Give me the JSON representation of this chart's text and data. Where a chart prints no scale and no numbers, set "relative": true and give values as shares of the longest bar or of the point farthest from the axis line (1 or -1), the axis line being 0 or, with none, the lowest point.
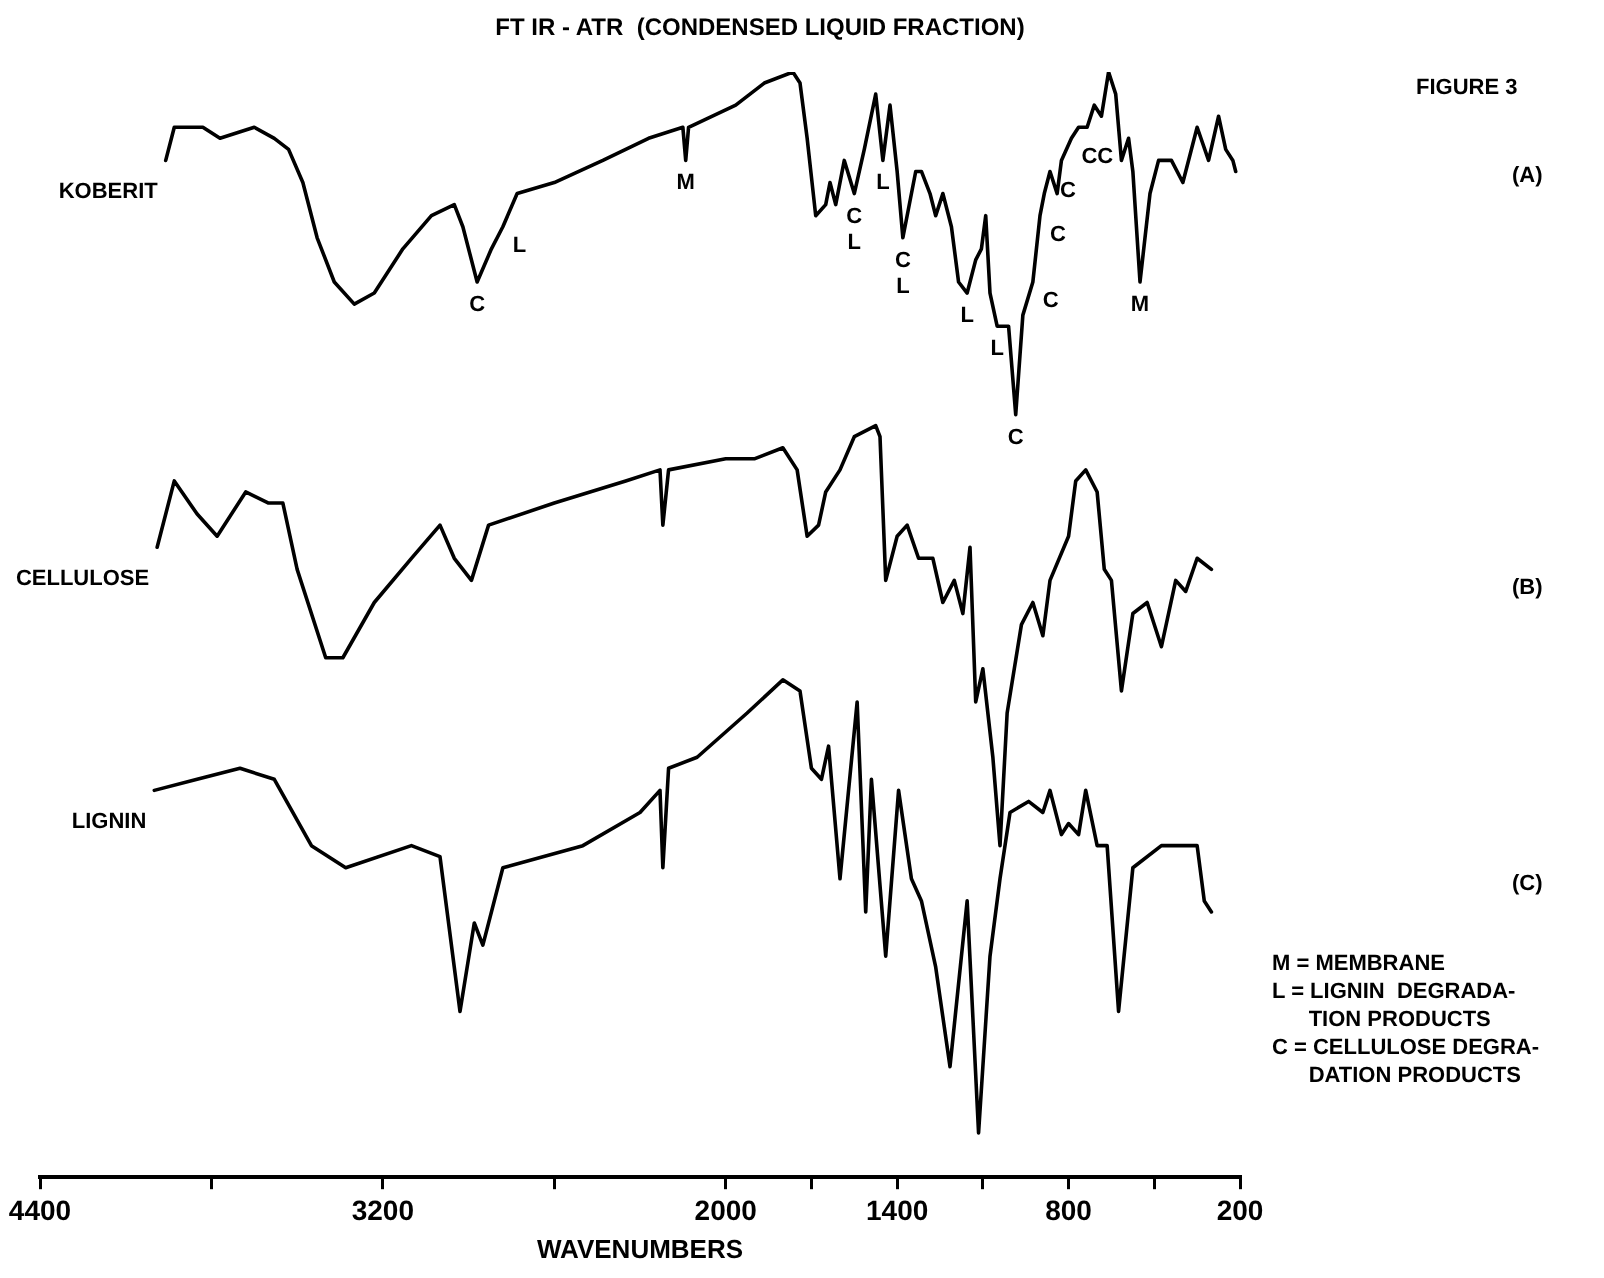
{
  "chart_data": {
    "type": "line",
    "title": "FT IR - ATR  (CONDENSED LIQUID FRACTION)",
    "xlabel": "WAVENUMBERS",
    "relative": true,
    "grid": false,
    "legend": false,
    "marker": "none",
    "line_style": "solid",
    "xlim": [
      4400,
      200
    ],
    "xticks": [
      4400,
      {
        "value": 3800,
        "label": null
      },
      3200,
      {
        "value": 2600,
        "label": null
      },
      2000,
      {
        "value": 1700,
        "label": null
      },
      1400,
      {
        "value": 1100,
        "label": null
      },
      800,
      {
        "value": 500,
        "label": null
      },
      200
    ],
    "series": [
      {
        "name": "KOBERIT",
        "color": "#000000",
        "x": [
          3960,
          3930,
          3880,
          3830,
          3770,
          3650,
          3580,
          3530,
          3480,
          3430,
          3370,
          3300,
          3230,
          3130,
          3030,
          2950,
          2920,
          2870,
          2820,
          2780,
          2730,
          2600,
          2430,
          2270,
          2150,
          2140,
          2130,
          1965,
          1865,
          1765,
          1740,
          1715,
          1685,
          1650,
          1635,
          1615,
          1585,
          1550,
          1515,
          1475,
          1450,
          1425,
          1400,
          1380,
          1335,
          1315,
          1285,
          1265,
          1240,
          1210,
          1185,
          1155,
          1125,
          1105,
          1090,
          1075,
          1050,
          1010,
          985,
          960,
          925,
          900,
          885,
          865,
          840,
          825,
          790,
          765,
          735,
          710,
          685,
          660,
          635,
          615,
          590,
          575,
          550,
          515,
          485,
          440,
          400,
          350,
          310,
          275,
          250,
          225,
          215
        ],
        "values": [
          0.92,
          0.95,
          0.95,
          0.95,
          0.94,
          0.95,
          0.94,
          0.93,
          0.9,
          0.85,
          0.81,
          0.79,
          0.8,
          0.84,
          0.87,
          0.88,
          0.86,
          0.81,
          0.84,
          0.86,
          0.89,
          0.9,
          0.92,
          0.94,
          0.95,
          0.92,
          0.95,
          0.97,
          0.99,
          1.0,
          0.99,
          0.94,
          0.87,
          0.88,
          0.9,
          0.88,
          0.92,
          0.89,
          0.93,
          0.98,
          0.92,
          0.97,
          0.91,
          0.85,
          0.91,
          0.91,
          0.89,
          0.87,
          0.89,
          0.86,
          0.81,
          0.8,
          0.83,
          0.84,
          0.87,
          0.8,
          0.77,
          0.77,
          0.69,
          0.78,
          0.81,
          0.87,
          0.89,
          0.91,
          0.89,
          0.92,
          0.94,
          0.95,
          0.95,
          0.97,
          0.96,
          1.0,
          0.98,
          0.92,
          0.94,
          0.91,
          0.81,
          0.89,
          0.92,
          0.92,
          0.9,
          0.95,
          0.92,
          0.96,
          0.93,
          0.92,
          0.91
        ]
      },
      {
        "name": "CELLULOSE",
        "color": "#000000",
        "x": [
          3990,
          3930,
          3850,
          3780,
          3680,
          3600,
          3550,
          3500,
          3400,
          3340,
          3230,
          3100,
          3000,
          2950,
          2890,
          2830,
          2600,
          2350,
          2230,
          2220,
          2200,
          2000,
          1900,
          1800,
          1750,
          1715,
          1675,
          1650,
          1600,
          1550,
          1475,
          1460,
          1440,
          1400,
          1365,
          1325,
          1275,
          1240,
          1200,
          1170,
          1145,
          1125,
          1100,
          1065,
          1040,
          1015,
          965,
          925,
          890,
          865,
          800,
          775,
          740,
          700,
          675,
          650,
          615,
          575,
          525,
          475,
          425,
          390,
          350,
          300
        ],
        "values": [
          0.57,
          0.63,
          0.6,
          0.58,
          0.62,
          0.61,
          0.61,
          0.55,
          0.47,
          0.47,
          0.52,
          0.56,
          0.59,
          0.56,
          0.54,
          0.59,
          0.61,
          0.63,
          0.64,
          0.59,
          0.64,
          0.65,
          0.65,
          0.66,
          0.64,
          0.58,
          0.59,
          0.62,
          0.64,
          0.67,
          0.68,
          0.67,
          0.54,
          0.58,
          0.59,
          0.56,
          0.56,
          0.52,
          0.54,
          0.51,
          0.57,
          0.43,
          0.46,
          0.38,
          0.3,
          0.42,
          0.5,
          0.52,
          0.49,
          0.54,
          0.58,
          0.63,
          0.64,
          0.62,
          0.55,
          0.54,
          0.44,
          0.51,
          0.52,
          0.48,
          0.54,
          0.53,
          0.56,
          0.55
        ]
      },
      {
        "name": "LIGNIN",
        "color": "#000000",
        "x": [
          4000,
          3850,
          3700,
          3580,
          3450,
          3330,
          3100,
          3000,
          2930,
          2880,
          2850,
          2780,
          2500,
          2300,
          2230,
          2220,
          2200,
          2100,
          1925,
          1800,
          1740,
          1700,
          1665,
          1640,
          1600,
          1540,
          1510,
          1490,
          1440,
          1395,
          1350,
          1315,
          1265,
          1215,
          1155,
          1115,
          1075,
          1040,
          1005,
          940,
          890,
          865,
          825,
          800,
          765,
          740,
          700,
          665,
          625,
          575,
          475,
          400,
          350,
          325,
          300
        ],
        "values": [
          0.35,
          0.36,
          0.37,
          0.36,
          0.3,
          0.28,
          0.3,
          0.29,
          0.15,
          0.23,
          0.21,
          0.28,
          0.3,
          0.33,
          0.35,
          0.28,
          0.37,
          0.38,
          0.42,
          0.45,
          0.44,
          0.37,
          0.36,
          0.39,
          0.27,
          0.43,
          0.24,
          0.36,
          0.2,
          0.35,
          0.27,
          0.25,
          0.19,
          0.1,
          0.25,
          0.04,
          0.2,
          0.27,
          0.33,
          0.34,
          0.33,
          0.35,
          0.31,
          0.32,
          0.31,
          0.35,
          0.3,
          0.3,
          0.15,
          0.28,
          0.3,
          0.3,
          0.3,
          0.25,
          0.24
        ]
      }
    ],
    "annotations": [
      {
        "text": "C",
        "x": 2870,
        "y": 0.81
      },
      {
        "text": "L",
        "x": 2780,
        "y": 0.86
      },
      {
        "text": "M",
        "x": 2140,
        "y": 0.92
      },
      {
        "text": "C",
        "x": 1550,
        "y": 0.89
      },
      {
        "text": "L",
        "x": 1550,
        "y": 0.89
      },
      {
        "text": "L",
        "x": 1450,
        "y": 0.92
      },
      {
        "text": "C",
        "x": 1380,
        "y": 0.85
      },
      {
        "text": "L",
        "x": 1380,
        "y": 0.85
      },
      {
        "text": "L",
        "x": 1155,
        "y": 0.8
      },
      {
        "text": "L",
        "x": 1050,
        "y": 0.77
      },
      {
        "text": "C",
        "x": 985,
        "y": 0.69
      },
      {
        "text": "C",
        "x": 925,
        "y": 0.81
      },
      {
        "text": "C",
        "x": 900,
        "y": 0.87
      },
      {
        "text": "C",
        "x": 865,
        "y": 0.91
      },
      {
        "text": "CC",
        "x": 790,
        "y": 0.94
      },
      {
        "text": "M",
        "x": 550,
        "y": 0.81
      },
      "FIGURE 3",
      "(A)",
      "(B)",
      "(C)",
      "M = MEMBRANE\nL = LIGNIN  DEGRADA-\n      TION PRODUCTS\nC = CELLULOSE DEGRA-\n      DATION PRODUCTS"
    ]
  }
}
